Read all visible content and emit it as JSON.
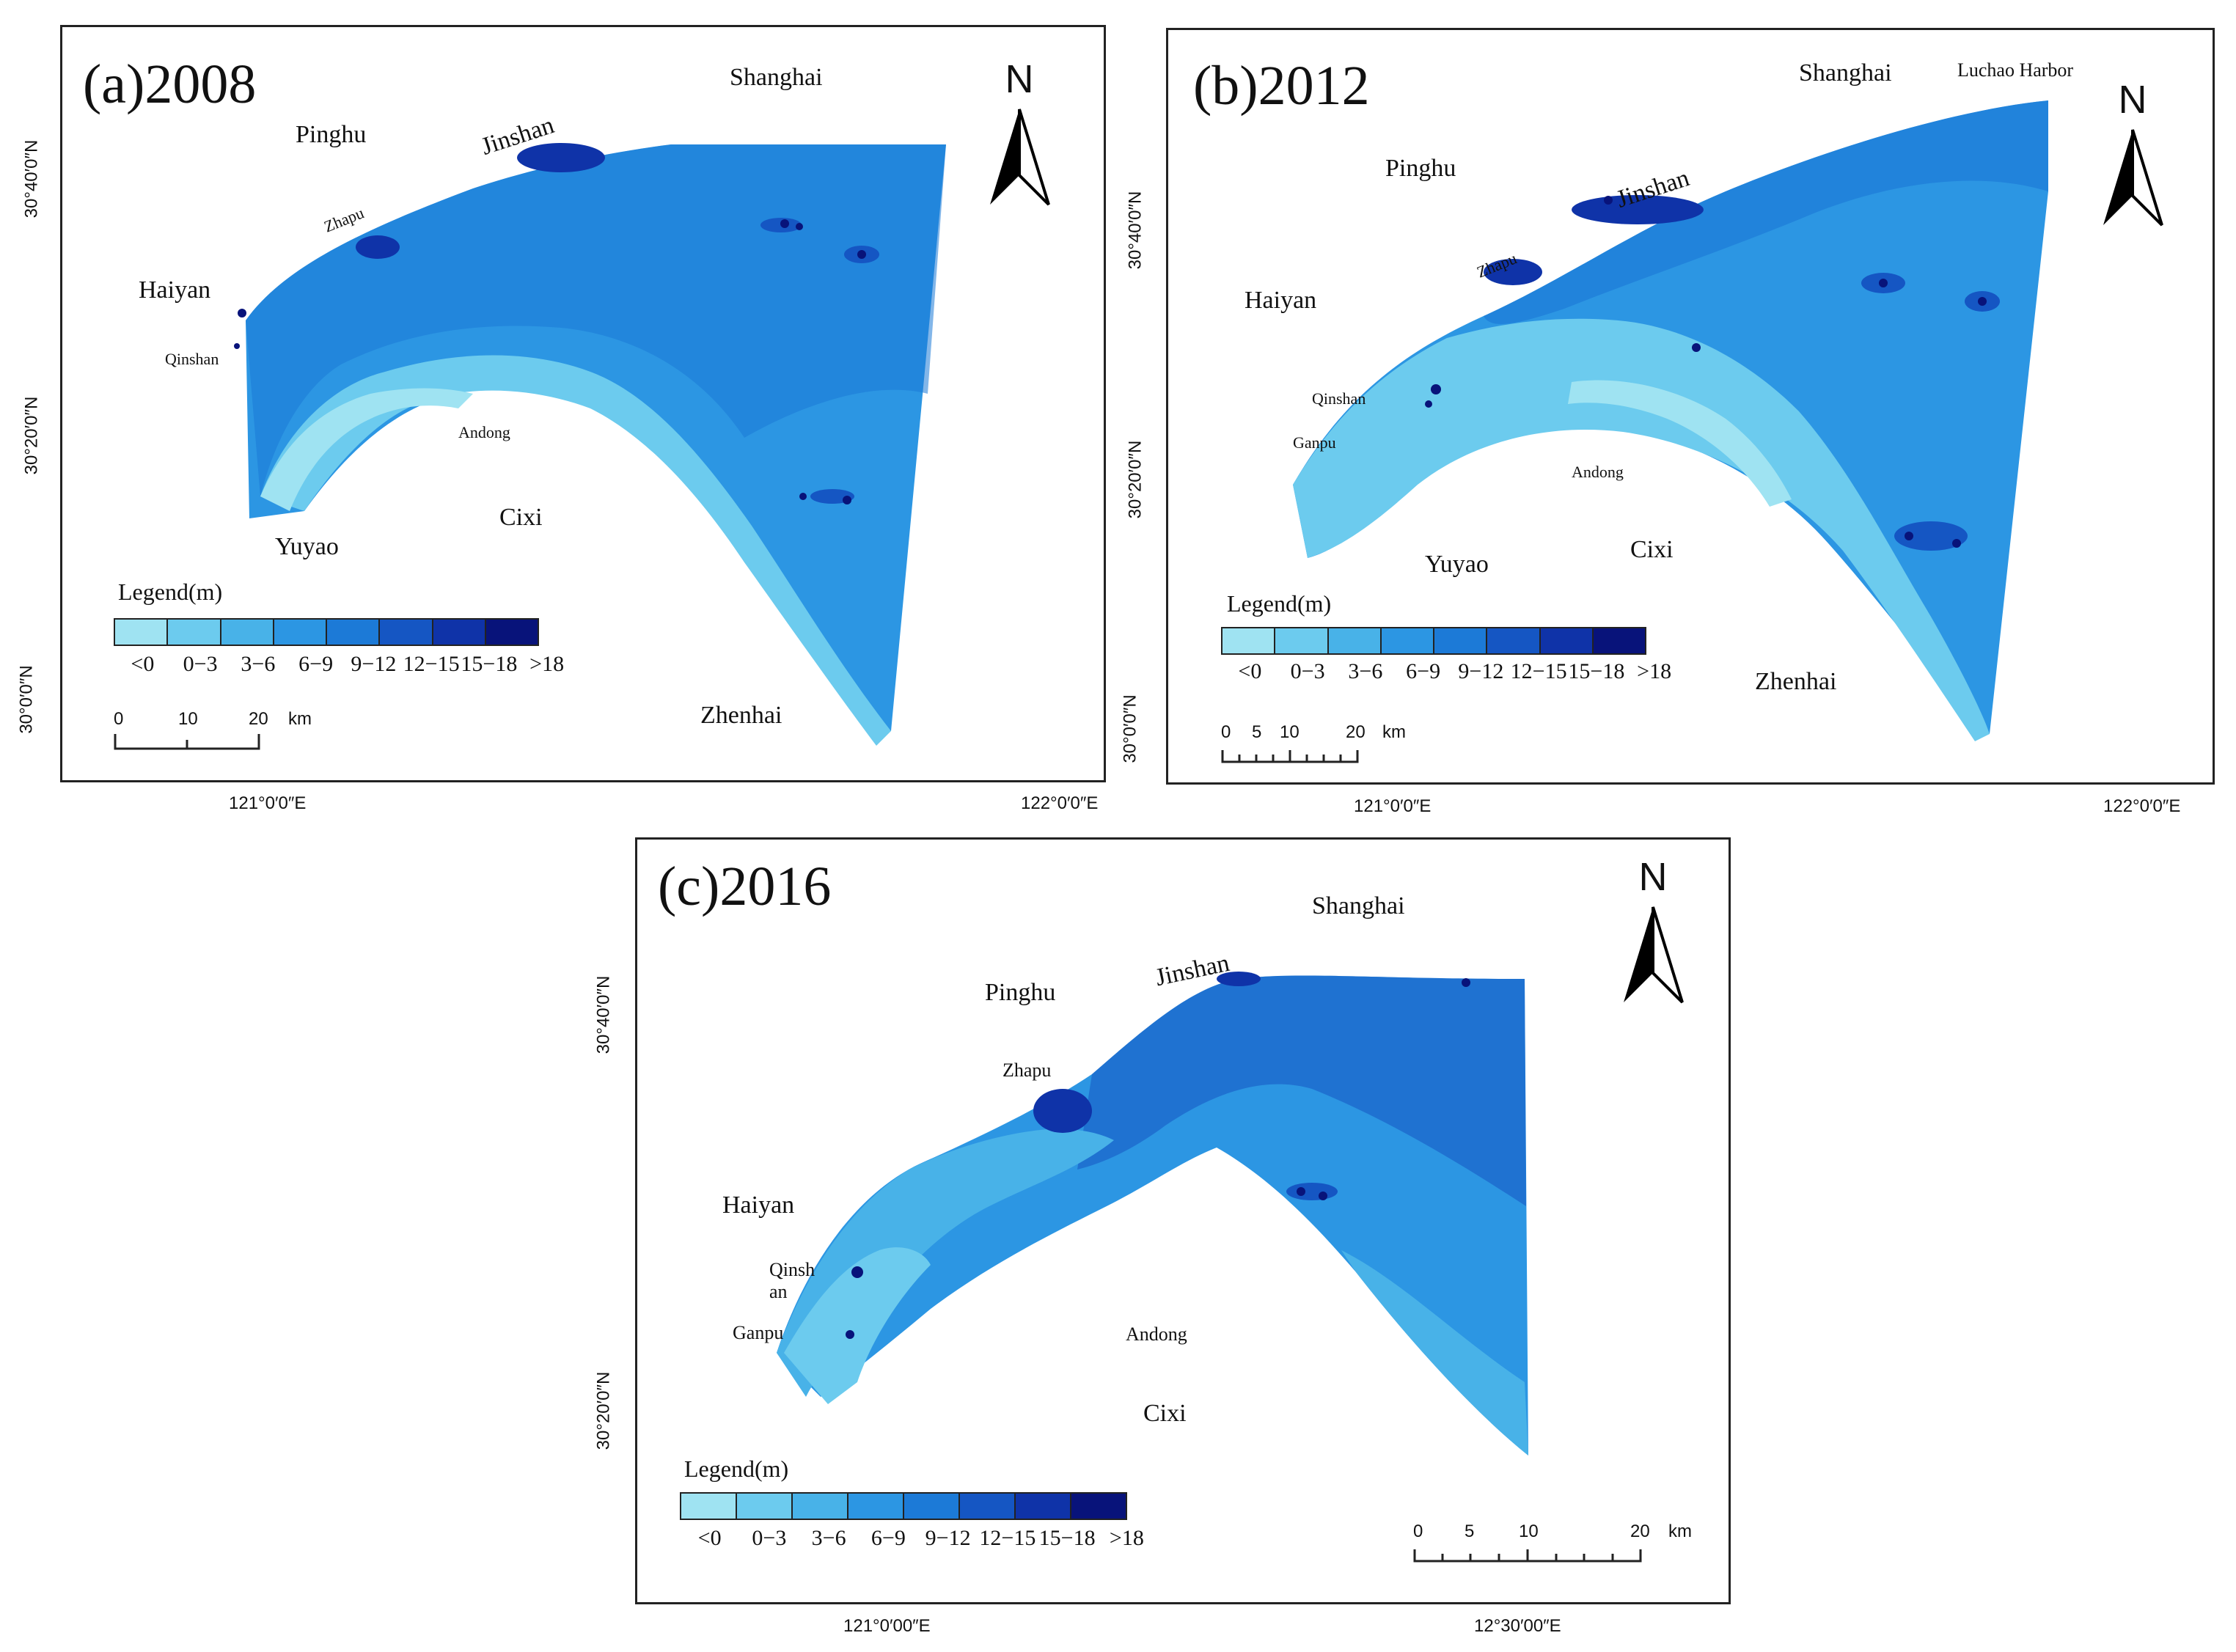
{
  "colors": {
    "frame": "#222222",
    "depth_ramp": [
      "#9fe3f2",
      "#6ccbee",
      "#48b2e8",
      "#2c96e3",
      "#1c7ad7",
      "#1556c3",
      "#0f33a8",
      "#08137a"
    ],
    "land": "#ffffff"
  },
  "legend": {
    "title": "Legend(m)",
    "classes": [
      "<0",
      "0−3",
      "3−6",
      "6−9",
      "9−12",
      "12−15",
      "15−18",
      ">18"
    ]
  },
  "north_arrow": {
    "letter": "N",
    "icon": "north-arrow-icon"
  },
  "panels": [
    {
      "id": "a",
      "title": "(a)2008",
      "places": [
        "Shanghai",
        "Pinghu",
        "Jinshan",
        "Zhapu",
        "Haiyan",
        "Qinshan",
        "Andong",
        "Cixi",
        "Yuyao",
        "Zhenhai"
      ],
      "lat_labels": [
        "30°40′0″N",
        "30°20′0″N",
        "30°0′0″N"
      ],
      "lon_labels": [
        "121°0′0″E",
        "122°0′0″E"
      ],
      "scale_labels": [
        "0",
        "10",
        "20",
        "km"
      ]
    },
    {
      "id": "b",
      "title": "(b)2012",
      "places": [
        "Shanghai",
        "Luchao Harbor",
        "Pinghu",
        "Jinshan",
        "Zhapu",
        "Haiyan",
        "Qinshan",
        "Ganpu",
        "Andong",
        "Cixi",
        "Yuyao",
        "Zhenhai"
      ],
      "lat_labels": [
        "30°40′0″N",
        "30°20′0″N",
        "30°0′0″N"
      ],
      "lon_labels": [
        "121°0′0″E",
        "122°0′0″E"
      ],
      "scale_labels": [
        "0",
        "5",
        "10",
        "20",
        "km"
      ]
    },
    {
      "id": "c",
      "title": "(c)2016",
      "places": [
        "Shanghai",
        "Pinghu",
        "Jinshan",
        "Zhapu",
        "Haiyan",
        "Qinsh",
        "an",
        "Ganpu",
        "Andong",
        "Cixi"
      ],
      "lat_labels": [
        "30°40′0″N",
        "30°20′0″N"
      ],
      "lon_labels": [
        "121°0′00″E",
        "12°30′00″E"
      ],
      "scale_labels": [
        "0",
        "5",
        "10",
        "20",
        "km"
      ]
    }
  ]
}
